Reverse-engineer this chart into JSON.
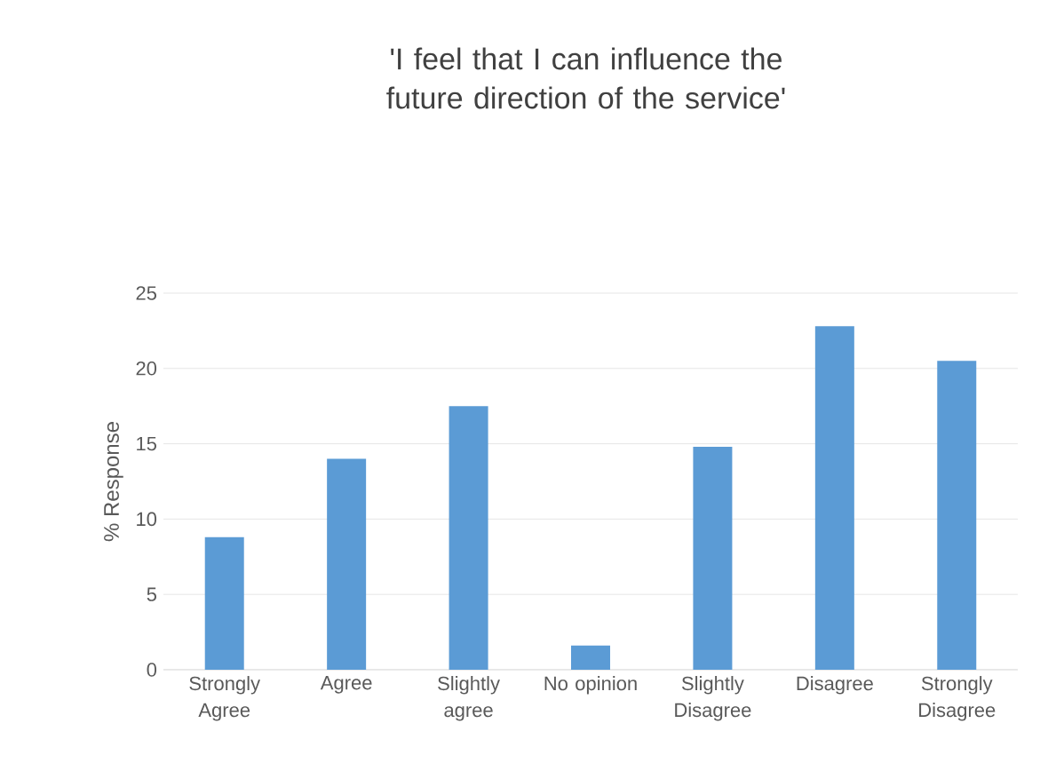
{
  "chart_data": {
    "type": "bar",
    "title": "'I feel that I can influence the future direction of the service'",
    "ylabel": "% Response",
    "categories": [
      "Strongly Agree",
      "Agree",
      "Slightly agree",
      "No opinion",
      "Slightly Disagree",
      "Disagree",
      "Strongly Disagree"
    ],
    "values": [
      8.8,
      14.0,
      17.5,
      1.6,
      14.8,
      22.8,
      20.5
    ],
    "color": "#5b9bd5",
    "ylim": [
      0,
      25
    ],
    "yticks": [
      0,
      5,
      10,
      15,
      20,
      25
    ],
    "grid": "y"
  }
}
